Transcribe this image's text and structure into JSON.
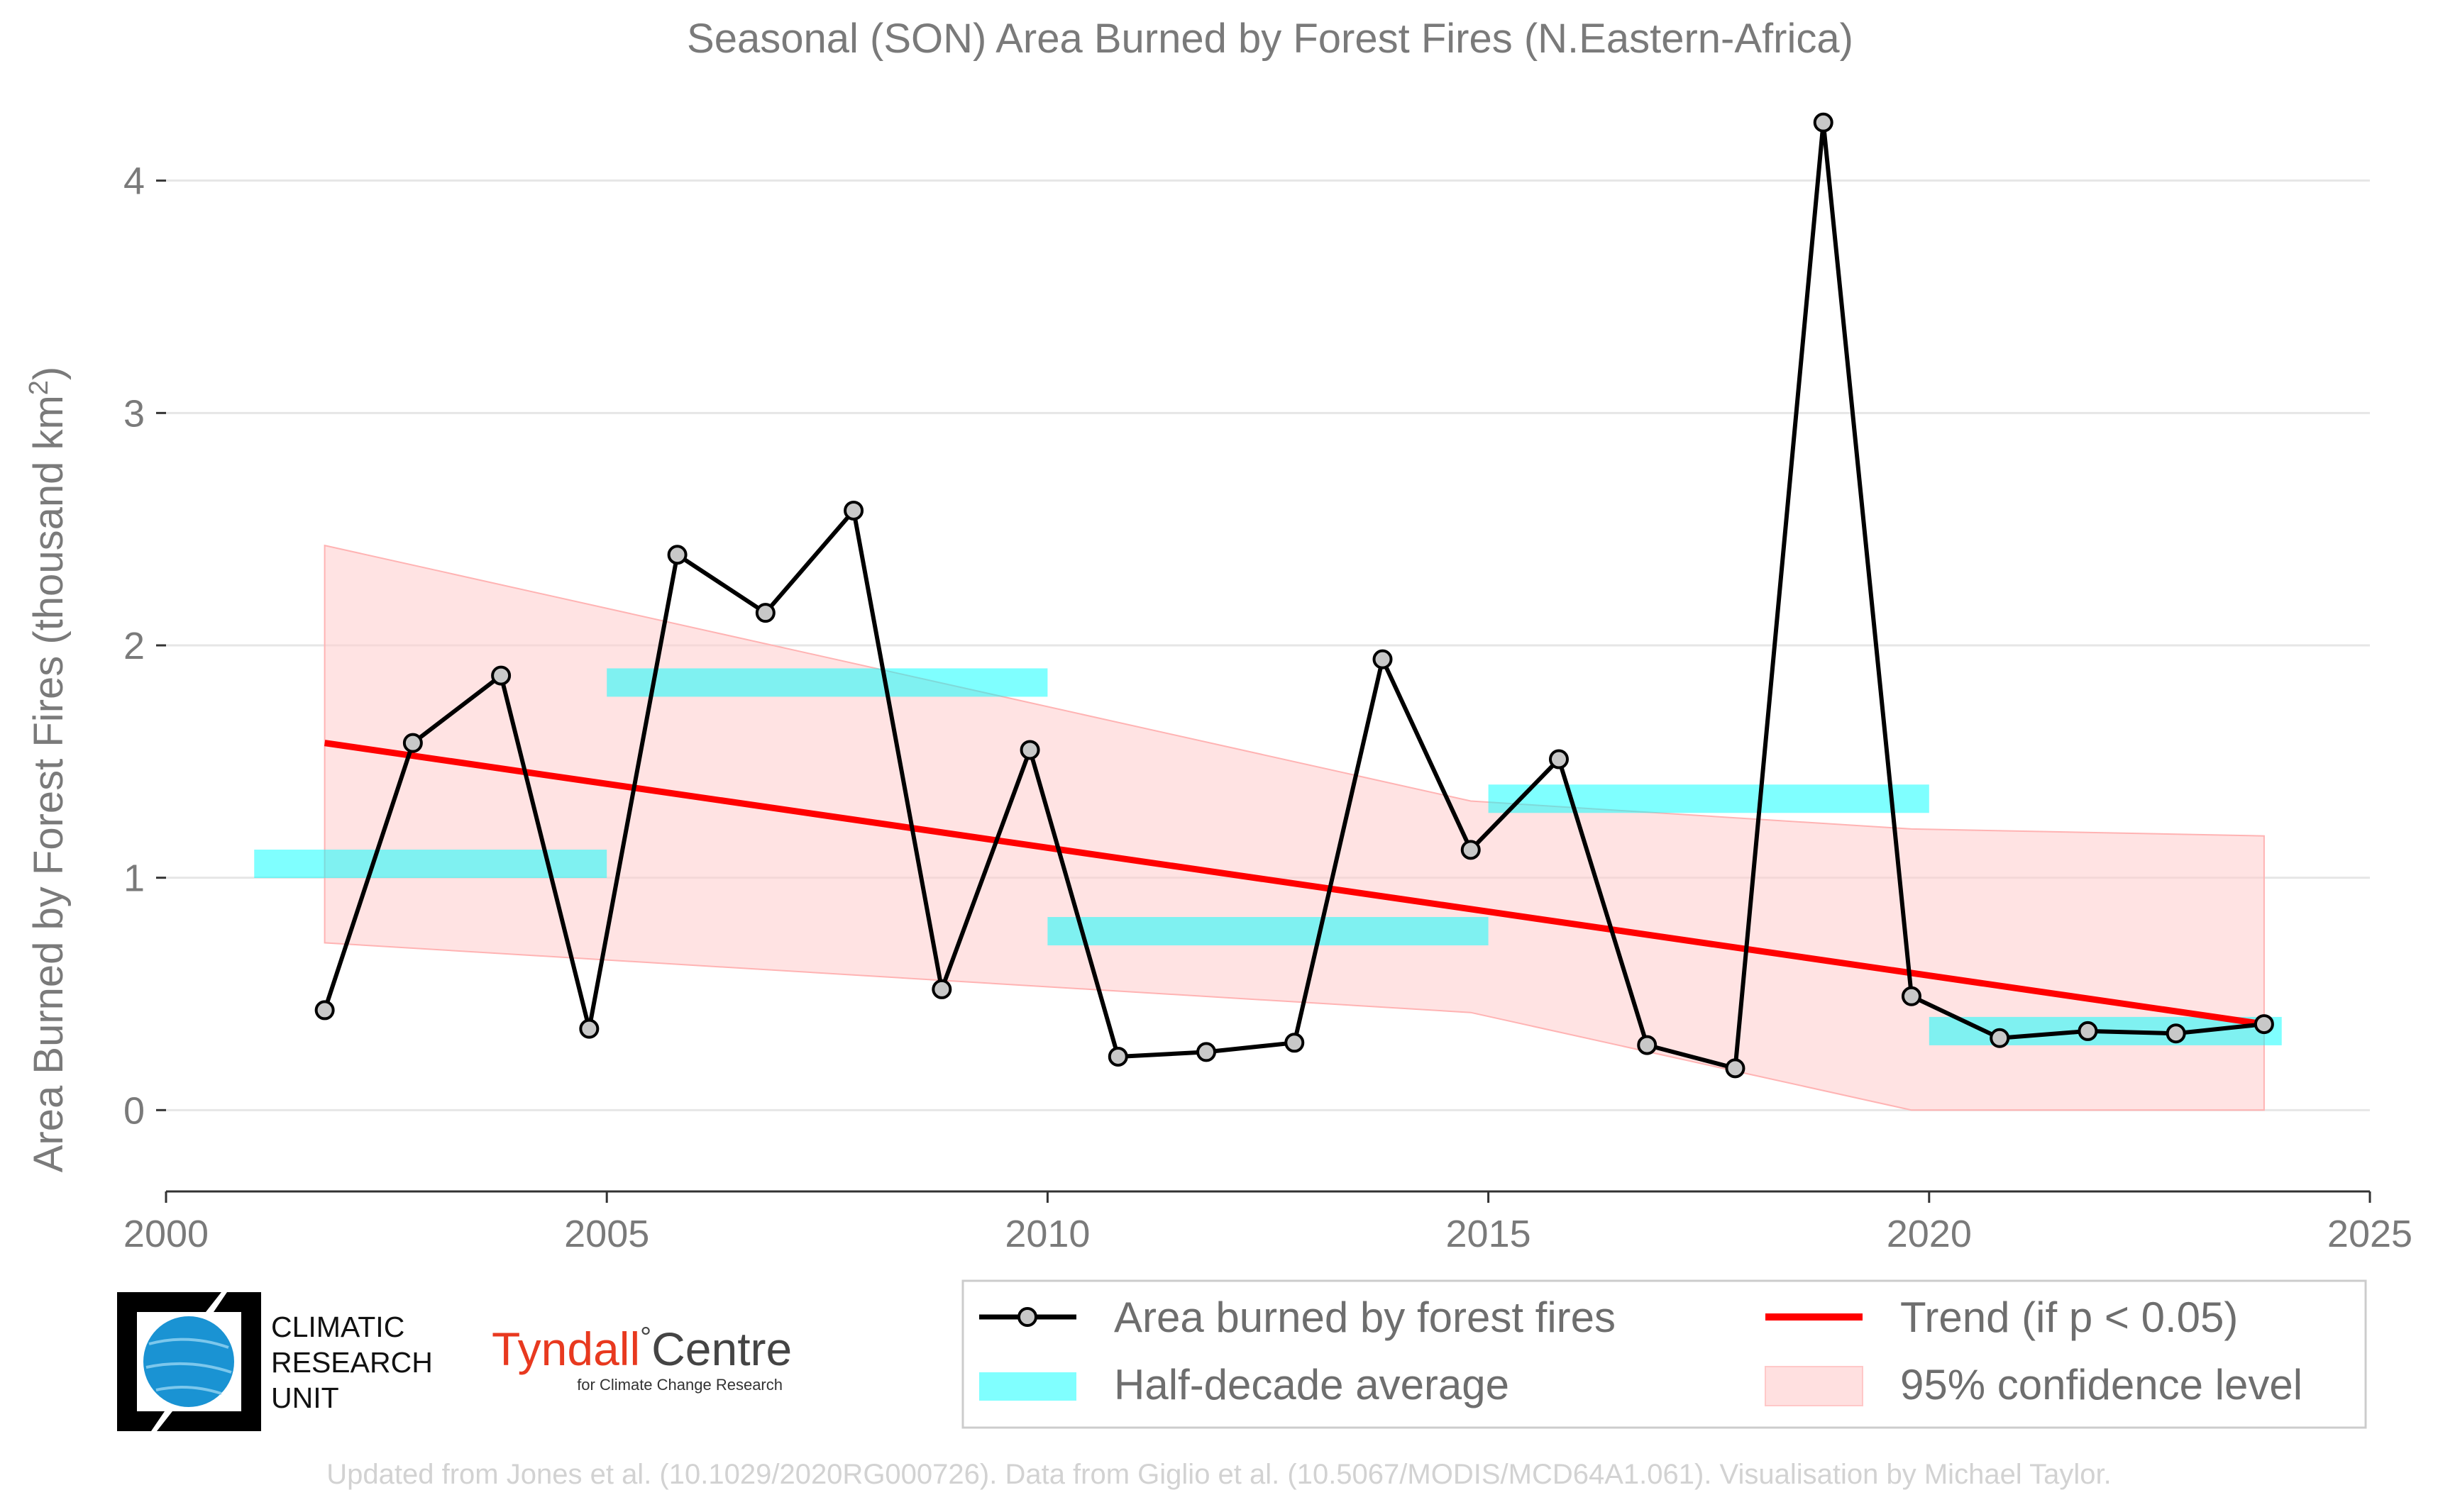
{
  "chart_data": {
    "type": "line",
    "title": "Seasonal (SON) Area Burned by Forest Fires (N.Eastern-Africa)",
    "ylabel_main": "Area Burned by Forest Fires (thousand km",
    "ylabel_sup": "2",
    "ylabel_close": ")",
    "xlim": [
      2000,
      2025
    ],
    "ylim": [
      -0.35,
      4.35
    ],
    "x_ticks": [
      2000,
      2005,
      2010,
      2015,
      2020,
      2025
    ],
    "y_ticks": [
      0,
      1,
      2,
      3,
      4
    ],
    "grid": "horizontal",
    "legend_position": "bottom-right",
    "series": [
      {
        "name": "Area burned by forest fires",
        "color": "#000000",
        "marker_fill": "#c8c8c8",
        "x": [
          2001.8,
          2002.8,
          2003.8,
          2004.8,
          2005.8,
          2006.8,
          2007.8,
          2008.8,
          2009.8,
          2010.8,
          2011.8,
          2012.8,
          2013.8,
          2014.8,
          2015.8,
          2016.8,
          2017.8,
          2018.8,
          2019.8,
          2020.8,
          2021.8,
          2022.8,
          2023.8
        ],
        "y": [
          0.43,
          1.58,
          1.87,
          0.35,
          2.39,
          2.14,
          2.58,
          0.52,
          1.55,
          0.23,
          0.25,
          0.29,
          1.94,
          1.12,
          1.51,
          0.28,
          0.18,
          4.25,
          0.49,
          0.31,
          0.34,
          0.33,
          0.37
        ]
      }
    ],
    "half_decade_average": {
      "name": "Half-decade average",
      "color": "#00ffff",
      "segments": [
        {
          "x0": 2001,
          "x1": 2005,
          "y": 1.06
        },
        {
          "x0": 2005,
          "x1": 2010,
          "y": 1.84
        },
        {
          "x0": 2010,
          "x1": 2015,
          "y": 0.77
        },
        {
          "x0": 2015,
          "x1": 2020,
          "y": 1.34
        },
        {
          "x0": 2020,
          "x1": 2024,
          "y": 0.34
        }
      ]
    },
    "trend": {
      "name": "Trend (if p < 0.05)",
      "color": "#ff0000",
      "x": [
        2001.8,
        2023.8
      ],
      "y": [
        1.58,
        0.37
      ]
    },
    "confidence_band": {
      "name": "95% confidence level",
      "color": "#ffcccc",
      "x": [
        2001.8,
        2014.8,
        2019.8,
        2023.8
      ],
      "upper": [
        2.43,
        1.33,
        1.21,
        1.18
      ],
      "lower": [
        0.72,
        0.42,
        0.0,
        0.0
      ]
    }
  },
  "footer": "Updated from Jones et al. (10.1029/2020RG000726). Data from Giglio et al. (10.5067/MODIS/MCD64A1.061). Visualisation by Michael Taylor.",
  "logos": {
    "cru_lines": [
      "CLIMATIC",
      "RESEARCH",
      "UNIT"
    ],
    "tyndall_name": "Tyndall",
    "tyndall_degree": "°",
    "tyndall_centre": "Centre",
    "tyndall_sub": "for Climate Change Research"
  }
}
